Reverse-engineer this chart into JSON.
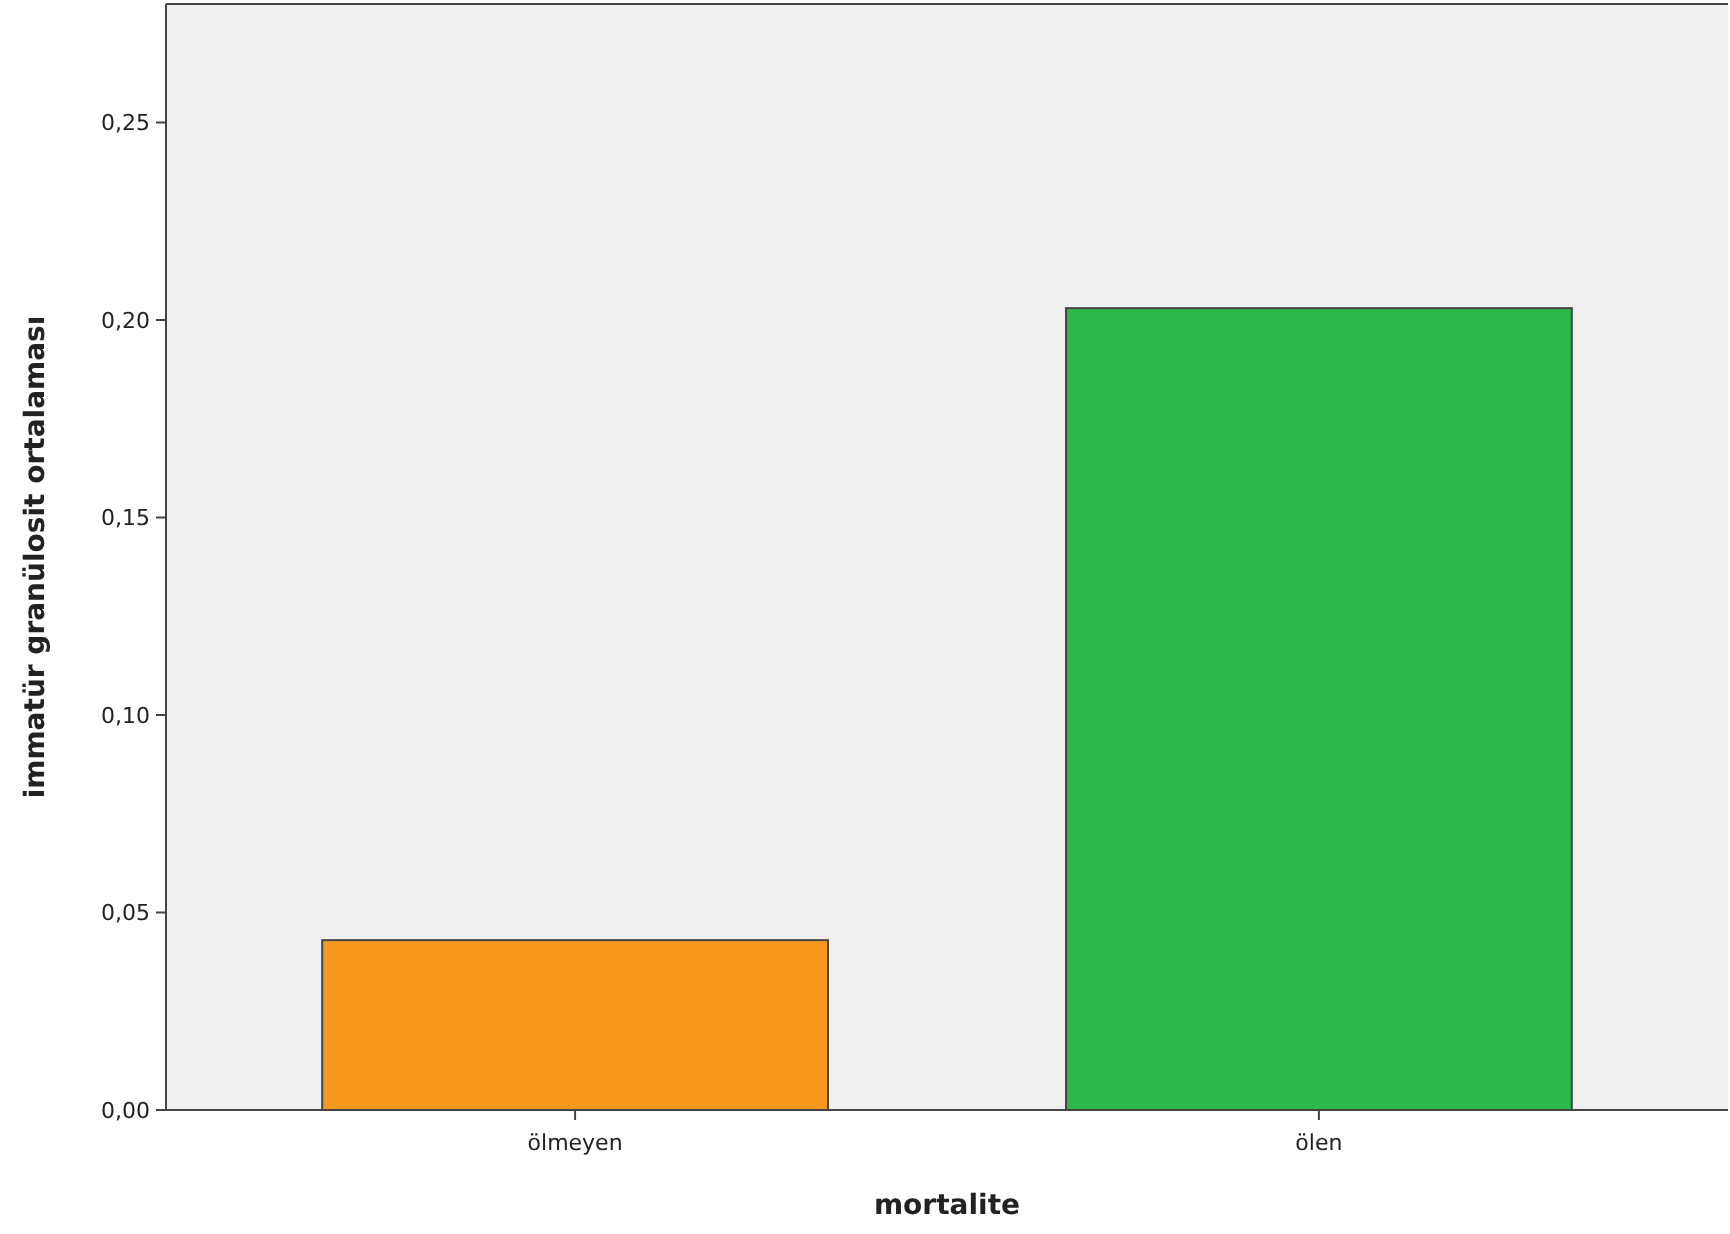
{
  "chart_data": {
    "type": "bar",
    "xlabel": "mortalite",
    "ylabel": "immatür granülosit ortalaması",
    "categories": [
      "ölmeyen",
      "ölen"
    ],
    "values": [
      0.043,
      0.203
    ],
    "colors": [
      "#f7991f",
      "#2fb84a"
    ],
    "ylim": [
      0,
      0.28
    ],
    "yticks": [
      {
        "value": 0,
        "label": "0,00"
      },
      {
        "value": 0.05,
        "label": "0,05"
      },
      {
        "value": 0.1,
        "label": "0,10"
      },
      {
        "value": 0.15,
        "label": "0,15"
      },
      {
        "value": 0.2,
        "label": "0,20"
      },
      {
        "value": 0.25,
        "label": "0,25"
      }
    ],
    "grid": false
  }
}
